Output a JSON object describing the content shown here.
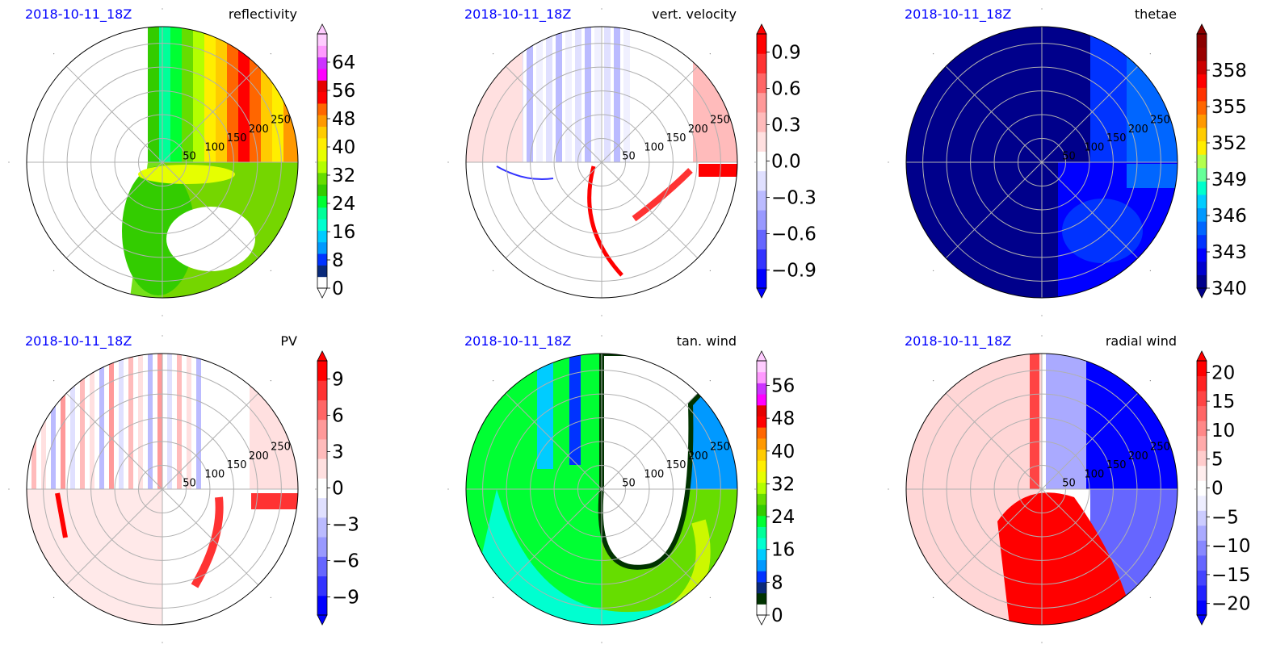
{
  "figure": {
    "colors": {
      "date_label": "#0000ff",
      "grid": "#b0b0b0",
      "axis_outline": "#000000"
    }
  },
  "chart_data": [
    {
      "type": "heatmap",
      "projection": "polar",
      "date_label": "2018-10-11_18Z",
      "title": "reflectivity",
      "radial_ticks": [
        50,
        100,
        150,
        200,
        250
      ],
      "colorbar": {
        "ticks": [
          "0",
          "8",
          "16",
          "24",
          "32",
          "40",
          "48",
          "56",
          "64"
        ],
        "range": [
          0,
          72
        ],
        "extend": "both",
        "colors": [
          "#ffffff",
          "#0a2a7a",
          "#0033ff",
          "#0099ff",
          "#00ccff",
          "#00ffd0",
          "#00ff99",
          "#00ff33",
          "#33cc00",
          "#66dd00",
          "#b3ff00",
          "#e6ff00",
          "#ffee00",
          "#ffcc00",
          "#ff9900",
          "#ff6600",
          "#ff0000",
          "#e60000",
          "#ff00ff",
          "#cc33ff",
          "#ff99ff",
          "#ffccff"
        ]
      }
    },
    {
      "type": "heatmap",
      "projection": "polar",
      "date_label": "2018-10-11_18Z",
      "title": "vert. velocity",
      "radial_ticks": [
        50,
        100,
        150,
        200,
        250
      ],
      "colorbar": {
        "ticks": [
          "0.9",
          "0.6",
          "0.3",
          "0.0",
          "−0.3",
          "−0.6",
          "−0.9"
        ],
        "range": [
          -1.05,
          1.05
        ],
        "extend": "both",
        "colors": [
          "#0000ff",
          "#3333ff",
          "#6666ff",
          "#9999ff",
          "#bbbbff",
          "#e0e0ff",
          "#ffffff",
          "#ffe0e0",
          "#ffbbbb",
          "#ff9999",
          "#ff6666",
          "#ff3333",
          "#ff0000"
        ]
      }
    },
    {
      "type": "heatmap",
      "projection": "polar",
      "date_label": "2018-10-11_18Z",
      "title": "thetae",
      "radial_ticks": [
        50,
        100,
        150,
        200,
        250
      ],
      "colorbar": {
        "ticks": [
          "358",
          "355",
          "352",
          "349",
          "346",
          "343",
          "340"
        ],
        "range": [
          340,
          361
        ],
        "extend": "both",
        "colors": [
          "#00008b",
          "#0000cd",
          "#0000ff",
          "#0033ff",
          "#0066ff",
          "#0099ff",
          "#00ccff",
          "#00ffcc",
          "#66ff99",
          "#b3ff4d",
          "#ffee00",
          "#ffcc00",
          "#ff9900",
          "#ff6600",
          "#ff3300",
          "#ff0000",
          "#cc0000",
          "#990000",
          "#8b0000"
        ]
      }
    },
    {
      "type": "heatmap",
      "projection": "polar",
      "date_label": "2018-10-11_18Z",
      "title": "PV",
      "radial_ticks": [
        50,
        100,
        150,
        200,
        250
      ],
      "colorbar": {
        "ticks": [
          "9",
          "6",
          "3",
          "0",
          "−3",
          "−6",
          "−9"
        ],
        "range": [
          -10.5,
          10.5
        ],
        "extend": "both",
        "colors": [
          "#0000ff",
          "#3333ff",
          "#6666ff",
          "#9999ff",
          "#bbbbff",
          "#e0e0ff",
          "#ffffff",
          "#ffe0e0",
          "#ffbbbb",
          "#ff9999",
          "#ff6666",
          "#ff3333",
          "#ff0000"
        ]
      }
    },
    {
      "type": "heatmap",
      "projection": "polar",
      "date_label": "2018-10-11_18Z",
      "title": "tan. wind",
      "radial_ticks": [
        50,
        100,
        150,
        200,
        250
      ],
      "colorbar": {
        "ticks": [
          "0",
          "8",
          "16",
          "24",
          "32",
          "40",
          "48",
          "56"
        ],
        "range": [
          0,
          62
        ],
        "extend": "both",
        "colors": [
          "#ffffff",
          "#003300",
          "#0a2a7a",
          "#0033ff",
          "#0099ff",
          "#00ccff",
          "#00ffd0",
          "#00ff99",
          "#00ff33",
          "#33cc00",
          "#66dd00",
          "#b3ff00",
          "#e6ff00",
          "#ffee00",
          "#ffcc00",
          "#ff9900",
          "#ff6600",
          "#ff0000",
          "#e60000",
          "#ff00ff",
          "#cc33ff",
          "#ff99ff",
          "#ffccff"
        ]
      }
    },
    {
      "type": "heatmap",
      "projection": "polar",
      "date_label": "2018-10-11_18Z",
      "title": "radial wind",
      "radial_ticks": [
        50,
        100,
        150,
        200,
        250
      ],
      "colorbar": {
        "ticks": [
          "20",
          "15",
          "10",
          "5",
          "0",
          "−5",
          "−10",
          "−15",
          "−20"
        ],
        "range": [
          -22,
          22
        ],
        "extend": "both",
        "colors": [
          "#0000ff",
          "#2222ff",
          "#4444ff",
          "#6666ff",
          "#8888ff",
          "#aaaaff",
          "#ccccff",
          "#eeeeff",
          "#ffffff",
          "#ffeeee",
          "#ffcccc",
          "#ffaaaa",
          "#ff8888",
          "#ff6666",
          "#ff4444",
          "#ff2222",
          "#ff0000"
        ]
      }
    }
  ]
}
